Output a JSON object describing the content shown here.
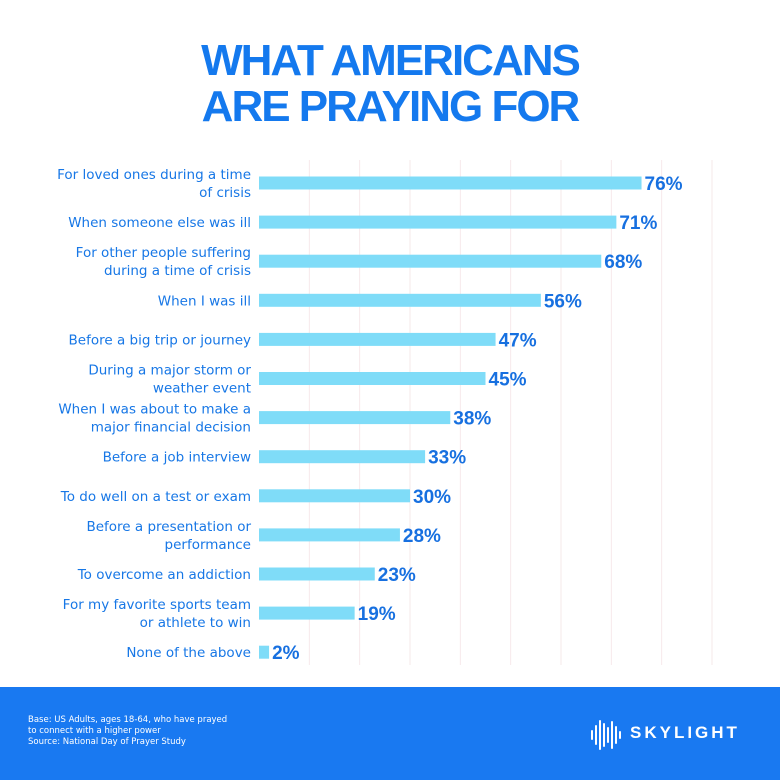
{
  "title": {
    "line1": "WHAT AMERICANS",
    "line2": "ARE PRAYING FOR"
  },
  "colors": {
    "title": "#1479ee",
    "bar": "#7fdcf8",
    "label": "#1777e6",
    "value": "#1770e0",
    "grid": "#f6e9ea",
    "footer": "#1979f1"
  },
  "chart_data": {
    "type": "bar",
    "orientation": "horizontal",
    "title": "WHAT AMERICANS ARE PRAYING FOR",
    "unit": "%",
    "xlim": [
      0,
      90
    ],
    "grid": true,
    "categories": [
      [
        "For loved ones during a time",
        "of crisis"
      ],
      [
        "When someone else was ill"
      ],
      [
        "For other people suffering",
        "during a time of crisis"
      ],
      [
        "When I was ill"
      ],
      [
        "Before a big trip or journey"
      ],
      [
        "During a major storm or",
        "weather event"
      ],
      [
        "When I was about to make a",
        "major financial decision"
      ],
      [
        "Before a job interview"
      ],
      [
        "To do well on a test or exam"
      ],
      [
        "Before a presentation or",
        "performance"
      ],
      [
        "To overcome an addiction"
      ],
      [
        "For my favorite sports team",
        "or athlete to win"
      ],
      [
        "None of the above"
      ]
    ],
    "values": [
      76,
      71,
      68,
      56,
      47,
      45,
      38,
      33,
      30,
      28,
      23,
      19,
      2
    ],
    "value_labels": [
      "76%",
      "71%",
      "68%",
      "56%",
      "47%",
      "45%",
      "38%",
      "33%",
      "30%",
      "28%",
      "23%",
      "19%",
      "2%"
    ]
  },
  "footer": {
    "note_line1": "Base: US Adults, ages 18-64, who have prayed",
    "note_line2": "to connect with a higher power",
    "note_line3": "Source: National Day of Prayer Study",
    "logo_text": "SKYLIGHT",
    "logo_icon": "soundwave-icon"
  }
}
